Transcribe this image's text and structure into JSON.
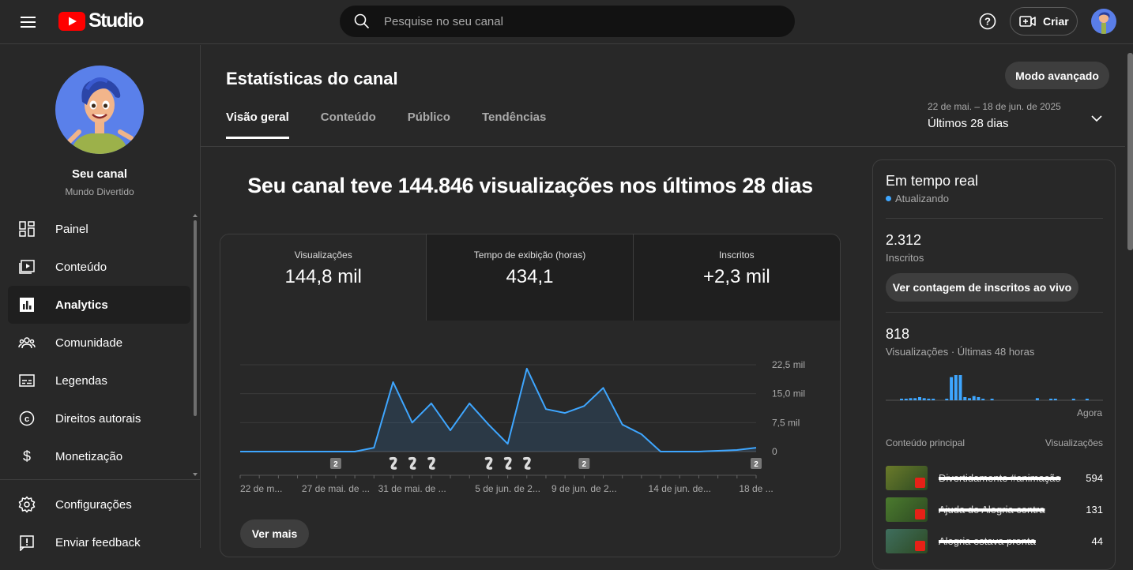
{
  "header": {
    "logo_text": "Studio",
    "search_placeholder": "Pesquise no seu canal",
    "create_label": "Criar"
  },
  "sidebar": {
    "channel_title": "Seu canal",
    "channel_name": "Mundo Divertido",
    "items": [
      {
        "label": "Painel",
        "icon": "dashboard-icon"
      },
      {
        "label": "Conteúdo",
        "icon": "content-icon"
      },
      {
        "label": "Analytics",
        "icon": "analytics-icon",
        "active": true
      },
      {
        "label": "Comunidade",
        "icon": "community-icon"
      },
      {
        "label": "Legendas",
        "icon": "subtitles-icon"
      },
      {
        "label": "Direitos autorais",
        "icon": "copyright-icon"
      },
      {
        "label": "Monetização",
        "icon": "monetization-icon"
      }
    ],
    "bottom_items": [
      {
        "label": "Configurações",
        "icon": "settings-icon"
      },
      {
        "label": "Enviar feedback",
        "icon": "feedback-icon"
      }
    ]
  },
  "main": {
    "title": "Estatísticas do canal",
    "advanced_button": "Modo avançado",
    "tabs": [
      {
        "label": "Visão geral",
        "active": true
      },
      {
        "label": "Conteúdo"
      },
      {
        "label": "Público"
      },
      {
        "label": "Tendências"
      }
    ],
    "date_range": {
      "range": "22 de mai. – 18 de jun. de 2025",
      "label": "Últimos 28 dias"
    },
    "headline": "Seu canal teve 144.846 visualizações nos últimos 28 dias",
    "metrics": [
      {
        "label": "Visualizações",
        "value": "144,8 mil"
      },
      {
        "label": "Tempo de exibição (horas)",
        "value": "434,1"
      },
      {
        "label": "Inscritos",
        "value": "+2,3 mil"
      }
    ],
    "ver_mais": "Ver mais"
  },
  "chart_data": {
    "type": "area",
    "color": "#3ea6ff",
    "y_ticks": [
      "0",
      "7,5 mil",
      "15,0 mil",
      "22,5 mil"
    ],
    "ylim": [
      0,
      22500
    ],
    "x_tick_labels": [
      "22 de m...",
      "27 de mai. de ...",
      "31 de mai. de ...",
      "5 de jun. de 2...",
      "9 de jun. de 2...",
      "14 de jun. de...",
      "18 de ..."
    ],
    "x_tick_days": [
      0,
      5,
      9,
      14,
      18,
      23,
      27
    ],
    "values": [
      0,
      0,
      0,
      0,
      0,
      0,
      0,
      1000,
      18000,
      7500,
      12500,
      5500,
      12500,
      7000,
      2000,
      21500,
      11000,
      10000,
      11800,
      16500,
      7000,
      4500,
      0,
      0,
      0,
      200,
      400,
      1000
    ],
    "markers": [
      {
        "day": 5,
        "type": "count",
        "text": "2"
      },
      {
        "day": 8,
        "type": "short"
      },
      {
        "day": 9,
        "type": "short"
      },
      {
        "day": 10,
        "type": "short"
      },
      {
        "day": 13,
        "type": "short"
      },
      {
        "day": 14,
        "type": "short"
      },
      {
        "day": 15,
        "type": "short"
      },
      {
        "day": 18,
        "type": "count",
        "text": "2"
      },
      {
        "day": 27,
        "type": "count",
        "text": "2"
      }
    ]
  },
  "realtime": {
    "title": "Em tempo real",
    "status": "Atualizando",
    "subscribers_value": "2.312",
    "subscribers_label": "Inscritos",
    "live_button": "Ver contagem de inscritos ao vivo",
    "views_value": "818",
    "views_label": "Visualizações · Últimas 48 horas",
    "now_label": "Agora",
    "bars": [
      0,
      0,
      0,
      1,
      1,
      2,
      2,
      3,
      2,
      1,
      1,
      0,
      0,
      1,
      22,
      24,
      24,
      3,
      2,
      4,
      3,
      1,
      0,
      1,
      0,
      0,
      0,
      0,
      0,
      0,
      0,
      0,
      0,
      2,
      0,
      0,
      1,
      1,
      0,
      0,
      0,
      1,
      0,
      0,
      1,
      0,
      0,
      0
    ],
    "top_header_left": "Conteúdo principal",
    "top_header_right": "Visualizações",
    "rows": [
      {
        "title": "Divertidamente #animação",
        "value": "594",
        "color": "#6a7a2a"
      },
      {
        "title": "Ajuda do Alegria contra",
        "value": "131",
        "color": "#4b7a2e"
      },
      {
        "title": "Alegria estava pronta",
        "value": "44",
        "color": "#3f6e5e"
      }
    ]
  }
}
